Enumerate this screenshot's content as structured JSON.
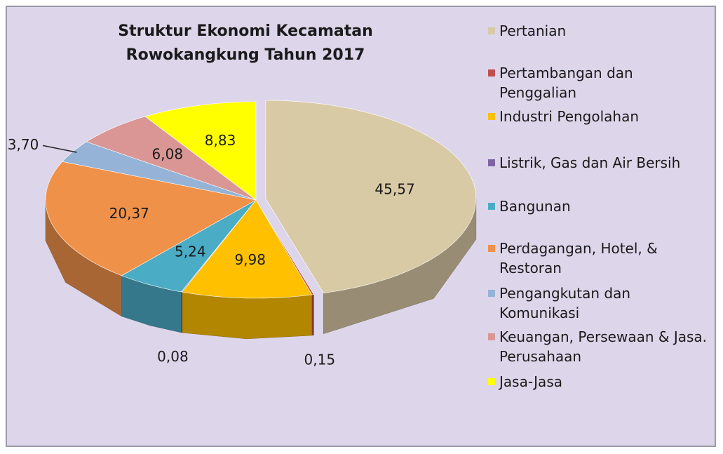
{
  "chart_data": {
    "type": "pie3d",
    "title": "Struktur Ekonomi Kecamatan Rowokangkung Tahun 2017",
    "categories": [
      "Pertanian",
      "Pertambangan dan Penggalian",
      "Industri Pengolahan",
      "Listrik, Gas dan Air Bersih",
      "Bangunan",
      "Perdagangan, Hotel, & Restoran",
      "Pengangkutan dan Komunikasi",
      "Keuangan, Persewaan & Jasa. Perusahaan",
      "Jasa-Jasa"
    ],
    "values": [
      45.57,
      0.15,
      9.98,
      0.08,
      5.24,
      20.37,
      3.7,
      6.08,
      8.83
    ],
    "value_labels": [
      "45,57",
      "0,15",
      "9,98",
      "0,08",
      "5,24",
      "20,37",
      "3,70",
      "6,08",
      "8,83"
    ],
    "colors": [
      "#d9caa6",
      "#c0504d",
      "#ffc000",
      "#8064a2",
      "#4bacc6",
      "#f0914a",
      "#95b3d7",
      "#d99694",
      "#ffff00"
    ],
    "legend": "right"
  }
}
